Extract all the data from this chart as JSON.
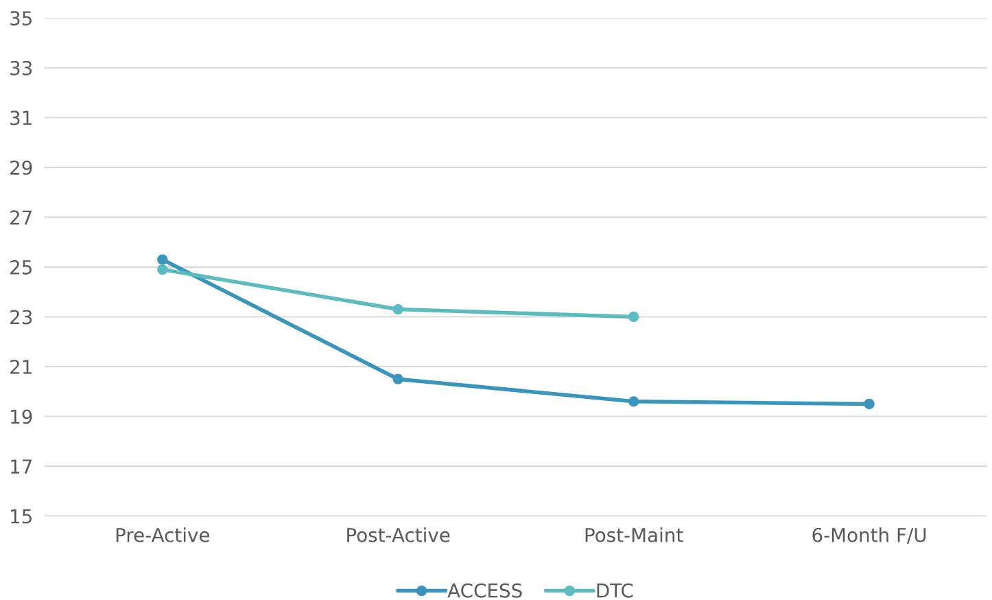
{
  "chart_data": {
    "type": "line",
    "categories": [
      "Pre-Active",
      "Post-Active",
      "Post-Maint",
      "6-Month F/U"
    ],
    "series": [
      {
        "name": "ACCESS",
        "color": "#3a95bd",
        "values": [
          25.3,
          20.5,
          19.6,
          19.5
        ]
      },
      {
        "name": "DTC",
        "color": "#5cbbc0",
        "values": [
          24.9,
          23.3,
          23.0,
          null
        ]
      }
    ],
    "ylim": [
      15,
      35
    ],
    "yticks": [
      15,
      17,
      19,
      21,
      23,
      25,
      27,
      29,
      31,
      33,
      35
    ],
    "grid": "y",
    "legend": "bottom",
    "marker": "circle",
    "line_style": "solid"
  }
}
